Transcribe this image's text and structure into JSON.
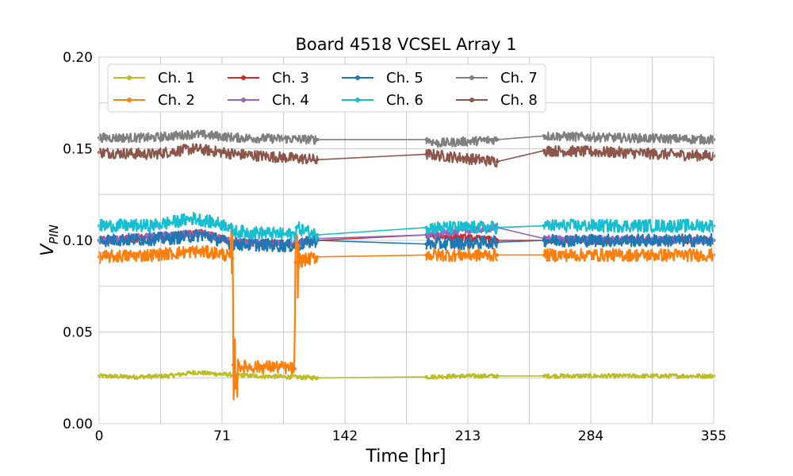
{
  "chart_data": {
    "type": "line",
    "title": "Board 4518 VCSEL Array 1",
    "xlabel": "Time [hr]",
    "ylabel_main": "V",
    "ylabel_sub": "PIN",
    "xlim": [
      0,
      355
    ],
    "ylim": [
      0,
      0.2
    ],
    "xticks": [
      0,
      71,
      142,
      213,
      284,
      355
    ],
    "xtick_labels": [
      "0",
      "71",
      "142",
      "213",
      "284",
      "355"
    ],
    "yticks": [
      0,
      0.05,
      0.1,
      0.15,
      0.2
    ],
    "ytick_labels": [
      "0.00",
      "0.05",
      "0.10",
      "0.15",
      "0.20"
    ],
    "grid": true,
    "legend_position": "top-left",
    "legend_columns": 4,
    "segments": [
      [
        0,
        126
      ],
      [
        189,
        230
      ],
      [
        257,
        355
      ]
    ],
    "series": [
      {
        "name": "Ch. 1",
        "color": "#bcbd22",
        "noise": 0.0012,
        "points": [
          [
            0,
            0.026
          ],
          [
            20,
            0.0255
          ],
          [
            40,
            0.026
          ],
          [
            55,
            0.028
          ],
          [
            70,
            0.027
          ],
          [
            90,
            0.026
          ],
          [
            110,
            0.0255
          ],
          [
            126,
            0.025
          ],
          [
            189,
            0.0255
          ],
          [
            210,
            0.026
          ],
          [
            230,
            0.026
          ],
          [
            257,
            0.026
          ],
          [
            300,
            0.026
          ],
          [
            355,
            0.026
          ]
        ]
      },
      {
        "name": "Ch. 2",
        "color": "#ff7f0e",
        "noise": 0.0035,
        "points": [
          [
            0,
            0.091
          ],
          [
            30,
            0.092
          ],
          [
            55,
            0.094
          ],
          [
            70,
            0.093
          ],
          [
            76,
            0.091
          ],
          [
            77,
            0.09
          ],
          [
            77.5,
            0.032
          ],
          [
            85,
            0.031
          ],
          [
            100,
            0.031
          ],
          [
            113,
            0.03
          ],
          [
            113.5,
            0.088
          ],
          [
            126,
            0.091
          ],
          [
            189,
            0.092
          ],
          [
            230,
            0.092
          ],
          [
            257,
            0.092
          ],
          [
            300,
            0.092
          ],
          [
            355,
            0.092
          ]
        ]
      },
      {
        "name": "Ch. 3",
        "color": "#d62728",
        "noise": 0.002,
        "points": [
          [
            0,
            0.1
          ],
          [
            40,
            0.102
          ],
          [
            60,
            0.104
          ],
          [
            77,
            0.099
          ],
          [
            113,
            0.098
          ],
          [
            126,
            0.1
          ],
          [
            189,
            0.103
          ],
          [
            230,
            0.1
          ],
          [
            257,
            0.1
          ],
          [
            355,
            0.1
          ]
        ]
      },
      {
        "name": "Ch. 4",
        "color": "#9467bd",
        "noise": 0.002,
        "points": [
          [
            0,
            0.1
          ],
          [
            40,
            0.103
          ],
          [
            60,
            0.104
          ],
          [
            77,
            0.099
          ],
          [
            113,
            0.098
          ],
          [
            126,
            0.101
          ],
          [
            189,
            0.103
          ],
          [
            230,
            0.107
          ],
          [
            257,
            0.101
          ],
          [
            355,
            0.1
          ]
        ]
      },
      {
        "name": "Ch. 5",
        "color": "#1f77b4",
        "noise": 0.0035,
        "points": [
          [
            0,
            0.1
          ],
          [
            40,
            0.101
          ],
          [
            60,
            0.103
          ],
          [
            77,
            0.098
          ],
          [
            113,
            0.097
          ],
          [
            126,
            0.1
          ],
          [
            189,
            0.098
          ],
          [
            230,
            0.099
          ],
          [
            257,
            0.1
          ],
          [
            355,
            0.1
          ]
        ]
      },
      {
        "name": "Ch. 6",
        "color": "#17becf",
        "noise": 0.0035,
        "points": [
          [
            0,
            0.108
          ],
          [
            30,
            0.108
          ],
          [
            55,
            0.112
          ],
          [
            75,
            0.108
          ],
          [
            77,
            0.105
          ],
          [
            113,
            0.103
          ],
          [
            114,
            0.107
          ],
          [
            126,
            0.103
          ],
          [
            189,
            0.107
          ],
          [
            230,
            0.107
          ],
          [
            257,
            0.108
          ],
          [
            300,
            0.108
          ],
          [
            355,
            0.108
          ]
        ]
      },
      {
        "name": "Ch. 7",
        "color": "#7f7f7f",
        "noise": 0.0025,
        "points": [
          [
            0,
            0.156
          ],
          [
            30,
            0.156
          ],
          [
            55,
            0.158
          ],
          [
            80,
            0.156
          ],
          [
            126,
            0.155
          ],
          [
            189,
            0.155
          ],
          [
            195,
            0.153
          ],
          [
            230,
            0.155
          ],
          [
            257,
            0.157
          ],
          [
            300,
            0.156
          ],
          [
            355,
            0.155
          ]
        ]
      },
      {
        "name": "Ch. 8",
        "color": "#8c564b",
        "noise": 0.003,
        "points": [
          [
            0,
            0.148
          ],
          [
            30,
            0.147
          ],
          [
            55,
            0.15
          ],
          [
            80,
            0.147
          ],
          [
            126,
            0.144
          ],
          [
            189,
            0.147
          ],
          [
            230,
            0.143
          ],
          [
            257,
            0.149
          ],
          [
            300,
            0.148
          ],
          [
            355,
            0.146
          ]
        ]
      }
    ]
  }
}
